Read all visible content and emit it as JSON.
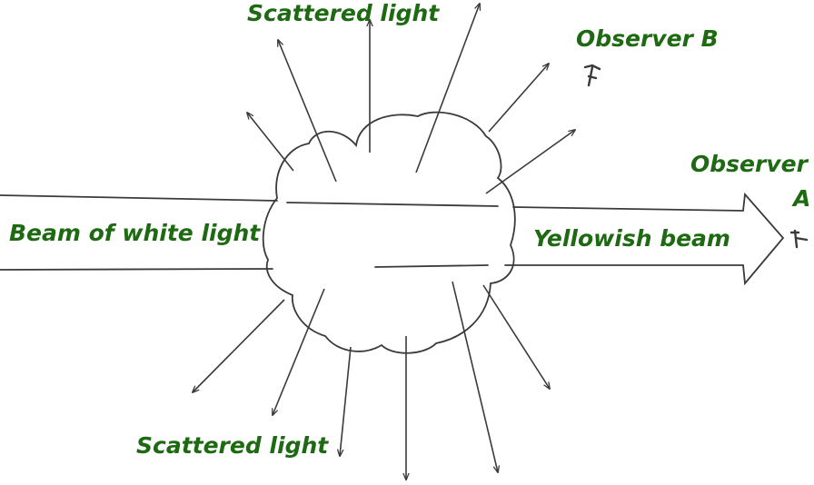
{
  "labels": {
    "scattered_top": "Scattered light",
    "observer_b": "Observer B",
    "observer_a_line1": "Observer",
    "observer_a_line2": "A",
    "beam_white": "Beam of white light",
    "yellowish_beam": "Yellowish beam",
    "scattered_bottom": "Scattered light"
  },
  "colors": {
    "label_text": "#1e6a12",
    "line": "#3a3a3a"
  },
  "icons": [
    "eye-icon-observer-b",
    "eye-icon-observer-a"
  ]
}
